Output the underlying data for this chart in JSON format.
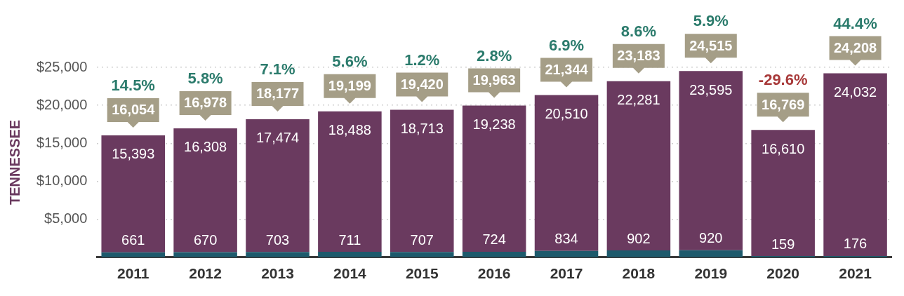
{
  "chart_data": {
    "type": "bar",
    "stacked": true,
    "ylabel": "TENNESSEE",
    "categories": [
      "2011",
      "2012",
      "2013",
      "2014",
      "2015",
      "2016",
      "2017",
      "2018",
      "2019",
      "2020",
      "2021"
    ],
    "series": [
      {
        "color": "#1d5a6c",
        "values": [
          661,
          670,
          703,
          711,
          707,
          724,
          834,
          902,
          920,
          159,
          176
        ]
      },
      {
        "color": "#6a3a5f",
        "values": [
          15393,
          16308,
          17474,
          18488,
          18713,
          19238,
          20510,
          22281,
          23595,
          16610,
          24032
        ],
        "value_labels": [
          "15,393",
          "16,308",
          "17,474",
          "18,488",
          "18,713",
          "19,238",
          "20,510",
          "22,281",
          "23,595",
          "16,610",
          "24,032"
        ]
      }
    ],
    "data_labels": true,
    "totals": [
      "16,054",
      "16,978",
      "18,177",
      "19,199",
      "19,420",
      "19,963",
      "21,344",
      "23,183",
      "24,515",
      "16,769",
      "24,208"
    ],
    "annotations": [
      "14.5%",
      "5.8%",
      "7.1%",
      "5.6%",
      "1.2%",
      "2.8%",
      "6.9%",
      "8.6%",
      "5.9%",
      "-29.6%",
      "44.4%"
    ],
    "ylim": [
      0,
      25000
    ],
    "yticks": [
      {
        "value": 5000,
        "label": "$5,000"
      },
      {
        "value": 10000,
        "label": "$10,000"
      },
      {
        "value": 15000,
        "label": "$15,000"
      },
      {
        "value": 20000,
        "label": "$20,000"
      },
      {
        "value": 25000,
        "label": "$25,000"
      }
    ],
    "grid": "y",
    "legend": false
  }
}
